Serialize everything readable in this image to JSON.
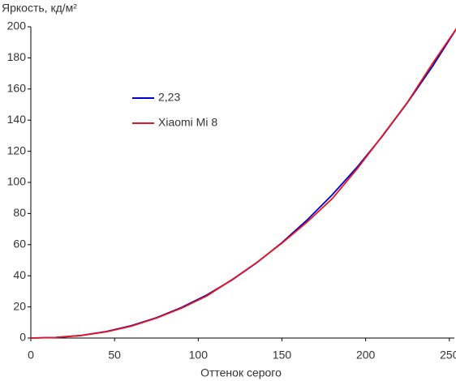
{
  "chart_data": {
    "type": "line",
    "y_label": "Яркость, кд/м²",
    "x_label": "Оттенок серого",
    "x": [
      0,
      15,
      30,
      45,
      60,
      75,
      90,
      105,
      120,
      135,
      150,
      165,
      180,
      195,
      210,
      225,
      240,
      255
    ],
    "series": [
      {
        "name": "2,23",
        "color": "#0000cc",
        "values": [
          0,
          0.36,
          1.69,
          4.18,
          7.94,
          13.06,
          19.6,
          27.6,
          37.2,
          48.4,
          61.3,
          75.8,
          92.0,
          109.9,
          129.7,
          151.3,
          174.7,
          200
        ]
      },
      {
        "name": "Xiaomi Mi 8",
        "color": "#e8141e",
        "values": [
          0,
          0.4,
          1.6,
          4.0,
          7.6,
          12.8,
          19.2,
          27.0,
          37.4,
          48.6,
          61.0,
          74.5,
          89.5,
          108.8,
          130.0,
          151.5,
          176.5,
          200
        ]
      }
    ],
    "xlim": [
      0,
      253
    ],
    "xticks": [
      0,
      50,
      100,
      150,
      200,
      250
    ],
    "ylim": [
      0,
      200
    ],
    "yticks": [
      0,
      20,
      40,
      60,
      80,
      100,
      120,
      140,
      160,
      180,
      200
    ],
    "grid": false
  }
}
